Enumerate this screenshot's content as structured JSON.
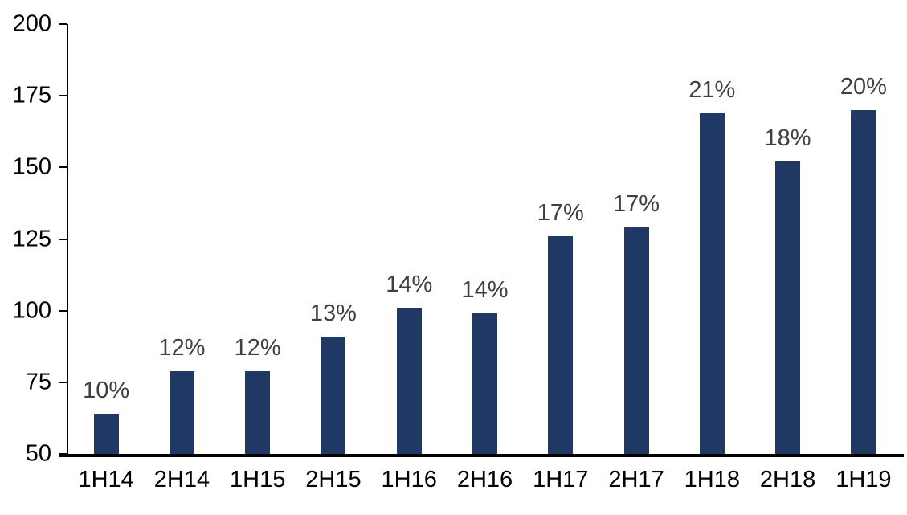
{
  "chart_data": {
    "type": "bar",
    "title": "",
    "xlabel": "",
    "ylabel": "",
    "categories": [
      "1H14",
      "2H14",
      "1H15",
      "2H15",
      "1H16",
      "2H16",
      "1H17",
      "2H17",
      "1H18",
      "2H18",
      "1H19"
    ],
    "values": [
      64,
      79,
      79,
      91,
      101,
      99,
      126,
      129,
      169,
      152,
      170
    ],
    "bar_labels": [
      "10%",
      "12%",
      "12%",
      "13%",
      "14%",
      "14%",
      "17%",
      "17%",
      "21%",
      "18%",
      "20%"
    ],
    "ylim": [
      50,
      200
    ],
    "yticks": [
      50,
      75,
      100,
      125,
      150,
      175,
      200
    ],
    "grid": false,
    "legend": false,
    "bar_color": "#1f3864",
    "label_color": "#404040",
    "axis_color": "#000000",
    "background_color": "#ffffff"
  }
}
